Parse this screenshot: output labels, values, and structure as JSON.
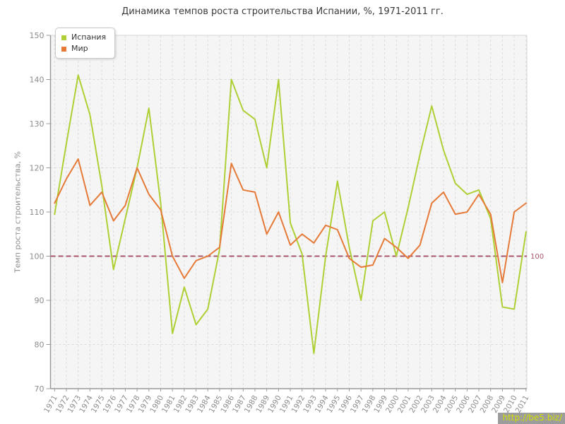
{
  "chart_data": {
    "type": "line",
    "title": "Динамика темпов роста строительства Испании, %, 1971-2011 гг.",
    "ylabel": "Темп роста строительства, %",
    "xlabel": "",
    "ylim": [
      70,
      150
    ],
    "yticks": [
      70,
      80,
      90,
      100,
      110,
      120,
      130,
      140,
      150
    ],
    "grid": true,
    "legend_position": "top-left",
    "categories": [
      "1971",
      "1972",
      "1973",
      "1974",
      "1975",
      "1976",
      "1977",
      "1978",
      "1979",
      "1980",
      "1981",
      "1982",
      "1983",
      "1984",
      "1985",
      "1986",
      "1987",
      "1988",
      "1989",
      "1990",
      "1991",
      "1992",
      "1993",
      "1994",
      "1995",
      "1996",
      "1997",
      "1998",
      "1999",
      "2000",
      "2001",
      "2002",
      "2003",
      "2004",
      "2005",
      "2006",
      "2007",
      "2008",
      "2009",
      "2010",
      "2011"
    ],
    "series": [
      {
        "name": "Испания",
        "color": "#aed035",
        "values": [
          109.5,
          125.5,
          141,
          132,
          116,
          97,
          108.5,
          120,
          133.5,
          112,
          82.5,
          93,
          84.5,
          88,
          101.5,
          140,
          133,
          131,
          120,
          140,
          107.5,
          100.5,
          78,
          100,
          117,
          102,
          90,
          108,
          110,
          100,
          111,
          123,
          134,
          124,
          116.5,
          114,
          115,
          108.5,
          88.5,
          88,
          105.5
        ]
      },
      {
        "name": "Мир",
        "color": "#e57a39",
        "values": [
          112,
          117.5,
          122,
          111.5,
          114.5,
          108,
          111.5,
          120,
          114,
          110.5,
          100,
          95,
          99,
          100,
          102,
          121,
          115,
          114.5,
          105,
          110,
          102.5,
          105,
          103,
          107,
          106,
          99.5,
          97.5,
          98,
          104,
          102,
          99.5,
          102.5,
          112,
          114.5,
          109.5,
          110,
          114,
          109.5,
          94,
          110,
          112
        ]
      }
    ],
    "reference_line": {
      "value": 100,
      "label": "100",
      "color": "#a8566b"
    },
    "colors": {
      "plot_background": "#f5f5f5",
      "gridline": "#dcdcdc",
      "axis": "#9a9a9a",
      "border": "#d6d6d6",
      "tick_label": "#8c8c8c"
    }
  },
  "watermark": {
    "text": "http://be5.biz/"
  }
}
